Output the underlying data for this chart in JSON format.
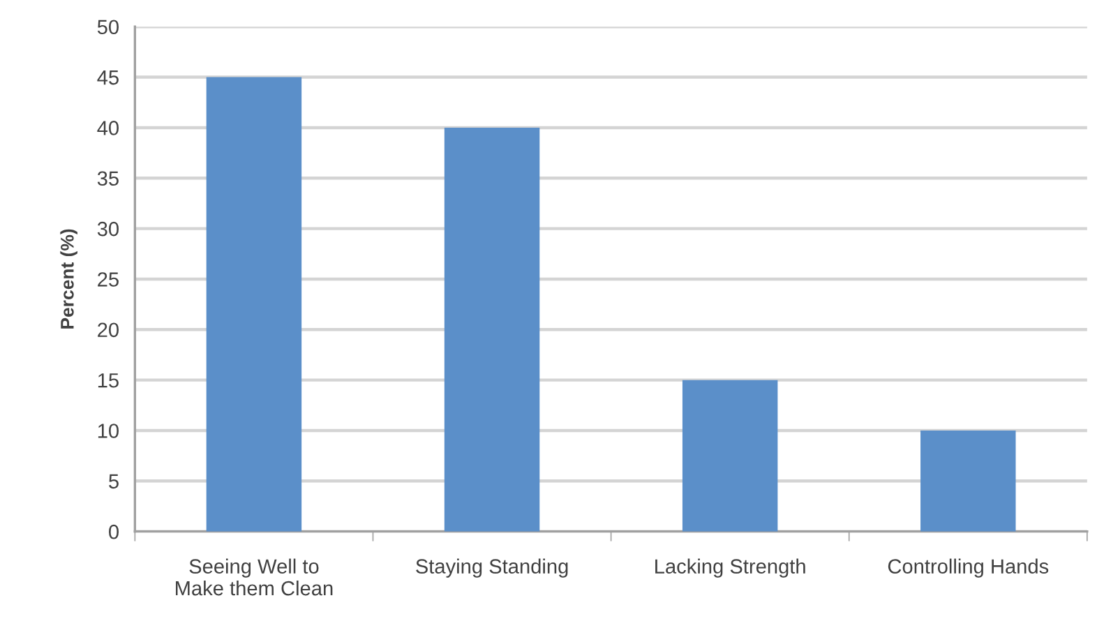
{
  "chart_data": {
    "type": "bar",
    "ylabel": "Percent (%)",
    "categories": [
      "Seeing Well to\nMake them Clean",
      "Staying Standing",
      "Lacking Strength",
      "Controlling Hands"
    ],
    "values": [
      45,
      40,
      15,
      10
    ],
    "color": "#5b8fc9",
    "ylim": [
      0,
      50
    ],
    "yticks": [
      0,
      5,
      10,
      15,
      20,
      25,
      30,
      35,
      40,
      45,
      50
    ],
    "grid": "y"
  }
}
